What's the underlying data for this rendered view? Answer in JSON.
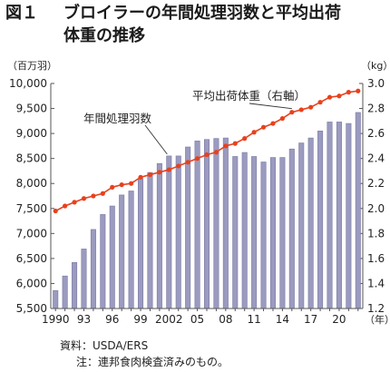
{
  "header": {
    "figure_number": "図１",
    "title_line1": "ブロイラーの年間処理羽数と平均出荷",
    "title_line2": "体重の推移"
  },
  "source": {
    "line1": "資料：USDA/ERS",
    "line2": "注：連邦食肉検査済みのもの。"
  },
  "colors": {
    "bar": "#9b9bc0",
    "bar_edge": "#7a7aa4",
    "line": "#e8411d",
    "axis": "#555555"
  },
  "chart_data": {
    "type": "bar",
    "y_left_unit": "（百万羽）",
    "y_right_unit": "（kg）",
    "x_unit": "（年）",
    "ylim_left": [
      5500,
      10000
    ],
    "ylim_right": [
      1.2,
      3.0
    ],
    "yticks_left": [
      "5,500",
      "6,000",
      "6,500",
      "7,000",
      "7,500",
      "8,000",
      "8,500",
      "9,000",
      "9,500",
      "10,000"
    ],
    "yticks_right": [
      "1.2",
      "1.4",
      "1.6",
      "1.8",
      "2.0",
      "2.2",
      "2.4",
      "2.6",
      "2.8",
      "3.0"
    ],
    "xtick_labels": [
      {
        "year": 1990,
        "label": "1990"
      },
      {
        "year": 1993,
        "label": "93"
      },
      {
        "year": 1996,
        "label": "96"
      },
      {
        "year": 1999,
        "label": "99"
      },
      {
        "year": 2002,
        "label": "2002"
      },
      {
        "year": 2005,
        "label": "05"
      },
      {
        "year": 2008,
        "label": "08"
      },
      {
        "year": 2011,
        "label": "11"
      },
      {
        "year": 2014,
        "label": "14"
      },
      {
        "year": 2017,
        "label": "17"
      },
      {
        "year": 2020,
        "label": "20"
      }
    ],
    "years": [
      1990,
      1991,
      1992,
      1993,
      1994,
      1995,
      1996,
      1997,
      1998,
      1999,
      2000,
      2001,
      2002,
      2003,
      2004,
      2005,
      2006,
      2007,
      2008,
      2009,
      2010,
      2011,
      2012,
      2013,
      2014,
      2015,
      2016,
      2017,
      2018,
      2019,
      2020,
      2021,
      2022
    ],
    "series": [
      {
        "name": "年間処理羽数",
        "axis": "left",
        "type": "bar",
        "values": [
          5860,
          6150,
          6420,
          6690,
          7080,
          7380,
          7550,
          7770,
          7850,
          8100,
          8220,
          8400,
          8550,
          8550,
          8730,
          8850,
          8880,
          8900,
          8910,
          8540,
          8620,
          8540,
          8430,
          8520,
          8520,
          8690,
          8810,
          8910,
          9050,
          9230,
          9230,
          9200,
          9420
        ]
      },
      {
        "name": "平均出荷体重（右軸）",
        "axis": "right",
        "type": "line",
        "values": [
          1.98,
          2.02,
          2.05,
          2.08,
          2.1,
          2.12,
          2.17,
          2.19,
          2.2,
          2.25,
          2.27,
          2.29,
          2.31,
          2.34,
          2.37,
          2.4,
          2.43,
          2.45,
          2.5,
          2.52,
          2.56,
          2.61,
          2.65,
          2.68,
          2.72,
          2.77,
          2.79,
          2.81,
          2.85,
          2.89,
          2.9,
          2.93,
          2.94
        ]
      }
    ],
    "annotations": [
      {
        "text": "年間処理羽数",
        "target_series": 0
      },
      {
        "text": "平均出荷体重（右軸）",
        "target_series": 1
      }
    ],
    "legend": "none",
    "grid": false
  }
}
